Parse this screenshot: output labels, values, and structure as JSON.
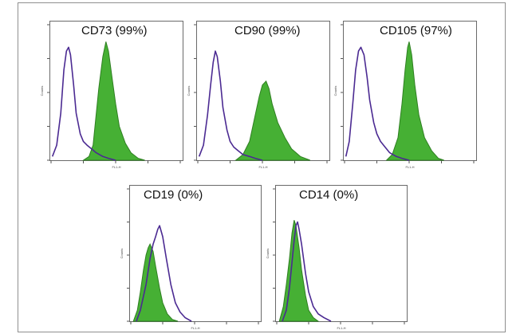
{
  "colors": {
    "filled": "#46b034",
    "filled_edge": "#2f7f22",
    "isotype": "#4b2a92",
    "frame": "#8f8f8f"
  },
  "chart_data": [
    {
      "type": "area",
      "title": "CD73 (99%)",
      "xlabel": "FL1-H",
      "ylabel": "Counts",
      "x_scale": "log",
      "xlim": [
        1,
        10000
      ],
      "series": [
        {
          "style": "outline",
          "points": [
            [
              1.1,
              2
            ],
            [
              1.5,
              8
            ],
            [
              2,
              25
            ],
            [
              2.5,
              48
            ],
            [
              3,
              58
            ],
            [
              3.5,
              60
            ],
            [
              4,
              56
            ],
            [
              5,
              40
            ],
            [
              6,
              25
            ],
            [
              8,
              14
            ],
            [
              10,
              10
            ],
            [
              13,
              8
            ],
            [
              18,
              6
            ],
            [
              25,
              4
            ],
            [
              40,
              2
            ],
            [
              60,
              1
            ],
            [
              100,
              0
            ]
          ]
        },
        {
          "style": "filled",
          "points": [
            [
              10,
              0
            ],
            [
              15,
              2
            ],
            [
              20,
              8
            ],
            [
              30,
              38
            ],
            [
              40,
              55
            ],
            [
              50,
              63
            ],
            [
              60,
              58
            ],
            [
              80,
              42
            ],
            [
              100,
              30
            ],
            [
              130,
              18
            ],
            [
              200,
              9
            ],
            [
              300,
              4
            ],
            [
              500,
              1
            ],
            [
              800,
              0
            ]
          ]
        }
      ]
    },
    {
      "type": "area",
      "title": "CD90 (99%)",
      "xlabel": "FL1-H",
      "ylabel": "Counts",
      "x_scale": "log",
      "xlim": [
        1,
        10000
      ],
      "series": [
        {
          "style": "outline",
          "points": [
            [
              1.1,
              2
            ],
            [
              1.5,
              8
            ],
            [
              2,
              24
            ],
            [
              2.5,
              40
            ],
            [
              3,
              52
            ],
            [
              3.5,
              58
            ],
            [
              4,
              55
            ],
            [
              5,
              42
            ],
            [
              6,
              28
            ],
            [
              8,
              16
            ],
            [
              10,
              10
            ],
            [
              13,
              7
            ],
            [
              18,
              5
            ],
            [
              25,
              3
            ],
            [
              40,
              2
            ],
            [
              60,
              1
            ],
            [
              100,
              0
            ]
          ]
        },
        {
          "style": "filled",
          "points": [
            [
              15,
              0
            ],
            [
              25,
              3
            ],
            [
              40,
              10
            ],
            [
              60,
              24
            ],
            [
              80,
              34
            ],
            [
              100,
              40
            ],
            [
              130,
              42
            ],
            [
              160,
              38
            ],
            [
              200,
              30
            ],
            [
              300,
              20
            ],
            [
              500,
              12
            ],
            [
              800,
              6
            ],
            [
              1500,
              2
            ],
            [
              3000,
              0
            ]
          ]
        }
      ]
    },
    {
      "type": "area",
      "title": "CD105 (97%)",
      "xlabel": "FL1-H",
      "ylabel": "Counts",
      "x_scale": "log",
      "xlim": [
        1,
        10000
      ],
      "series": [
        {
          "style": "outline",
          "points": [
            [
              1.1,
              2
            ],
            [
              1.4,
              10
            ],
            [
              1.8,
              30
            ],
            [
              2.2,
              48
            ],
            [
              2.7,
              58
            ],
            [
              3.2,
              60
            ],
            [
              4,
              56
            ],
            [
              5,
              44
            ],
            [
              6,
              32
            ],
            [
              8,
              20
            ],
            [
              10,
              14
            ],
            [
              13,
              10
            ],
            [
              18,
              7
            ],
            [
              25,
              4
            ],
            [
              40,
              2
            ],
            [
              60,
              1
            ],
            [
              100,
              0
            ]
          ]
        },
        {
          "style": "filled",
          "points": [
            [
              20,
              0
            ],
            [
              30,
              3
            ],
            [
              45,
              12
            ],
            [
              60,
              30
            ],
            [
              75,
              48
            ],
            [
              90,
              60
            ],
            [
              100,
              63
            ],
            [
              120,
              56
            ],
            [
              150,
              40
            ],
            [
              200,
              24
            ],
            [
              300,
              12
            ],
            [
              500,
              5
            ],
            [
              800,
              1
            ],
            [
              1200,
              0
            ]
          ]
        }
      ]
    },
    {
      "type": "area",
      "title": "CD19 (0%)",
      "xlabel": "FL1-H",
      "ylabel": "Counts",
      "x_scale": "log",
      "xlim": [
        1,
        10000
      ],
      "series": [
        {
          "style": "outline",
          "points": [
            [
              1.5,
              0
            ],
            [
              2,
              6
            ],
            [
              3,
              20
            ],
            [
              4,
              34
            ],
            [
              5,
              42
            ],
            [
              6,
              46
            ],
            [
              7,
              50
            ],
            [
              8,
              52
            ],
            [
              10,
              46
            ],
            [
              13,
              34
            ],
            [
              18,
              20
            ],
            [
              25,
              10
            ],
            [
              35,
              5
            ],
            [
              50,
              2
            ],
            [
              80,
              0
            ]
          ]
        },
        {
          "style": "filled",
          "points": [
            [
              1.2,
              0
            ],
            [
              1.6,
              6
            ],
            [
              2,
              16
            ],
            [
              2.5,
              28
            ],
            [
              3,
              36
            ],
            [
              3.5,
              40
            ],
            [
              4,
              42
            ],
            [
              5,
              38
            ],
            [
              6,
              30
            ],
            [
              8,
              18
            ],
            [
              10,
              10
            ],
            [
              14,
              4
            ],
            [
              20,
              1
            ],
            [
              30,
              0
            ]
          ]
        }
      ]
    },
    {
      "type": "area",
      "title": "CD14 (0%)",
      "xlabel": "FL1-H",
      "ylabel": "Counts",
      "x_scale": "log",
      "xlim": [
        1,
        10000
      ],
      "series": [
        {
          "style": "outline",
          "points": [
            [
              1.5,
              0
            ],
            [
              2,
              6
            ],
            [
              2.5,
              18
            ],
            [
              3,
              32
            ],
            [
              3.5,
              44
            ],
            [
              4,
              52
            ],
            [
              4.5,
              54
            ],
            [
              5,
              50
            ],
            [
              6,
              42
            ],
            [
              8,
              26
            ],
            [
              10,
              16
            ],
            [
              14,
              8
            ],
            [
              20,
              4
            ],
            [
              30,
              2
            ],
            [
              50,
              0
            ]
          ]
        },
        {
          "style": "filled",
          "points": [
            [
              1.2,
              0
            ],
            [
              1.6,
              8
            ],
            [
              2,
              20
            ],
            [
              2.5,
              34
            ],
            [
              3,
              48
            ],
            [
              3.5,
              55
            ],
            [
              4,
              52
            ],
            [
              5,
              40
            ],
            [
              6,
              28
            ],
            [
              8,
              14
            ],
            [
              10,
              6
            ],
            [
              14,
              2
            ],
            [
              20,
              0
            ]
          ]
        }
      ]
    }
  ]
}
